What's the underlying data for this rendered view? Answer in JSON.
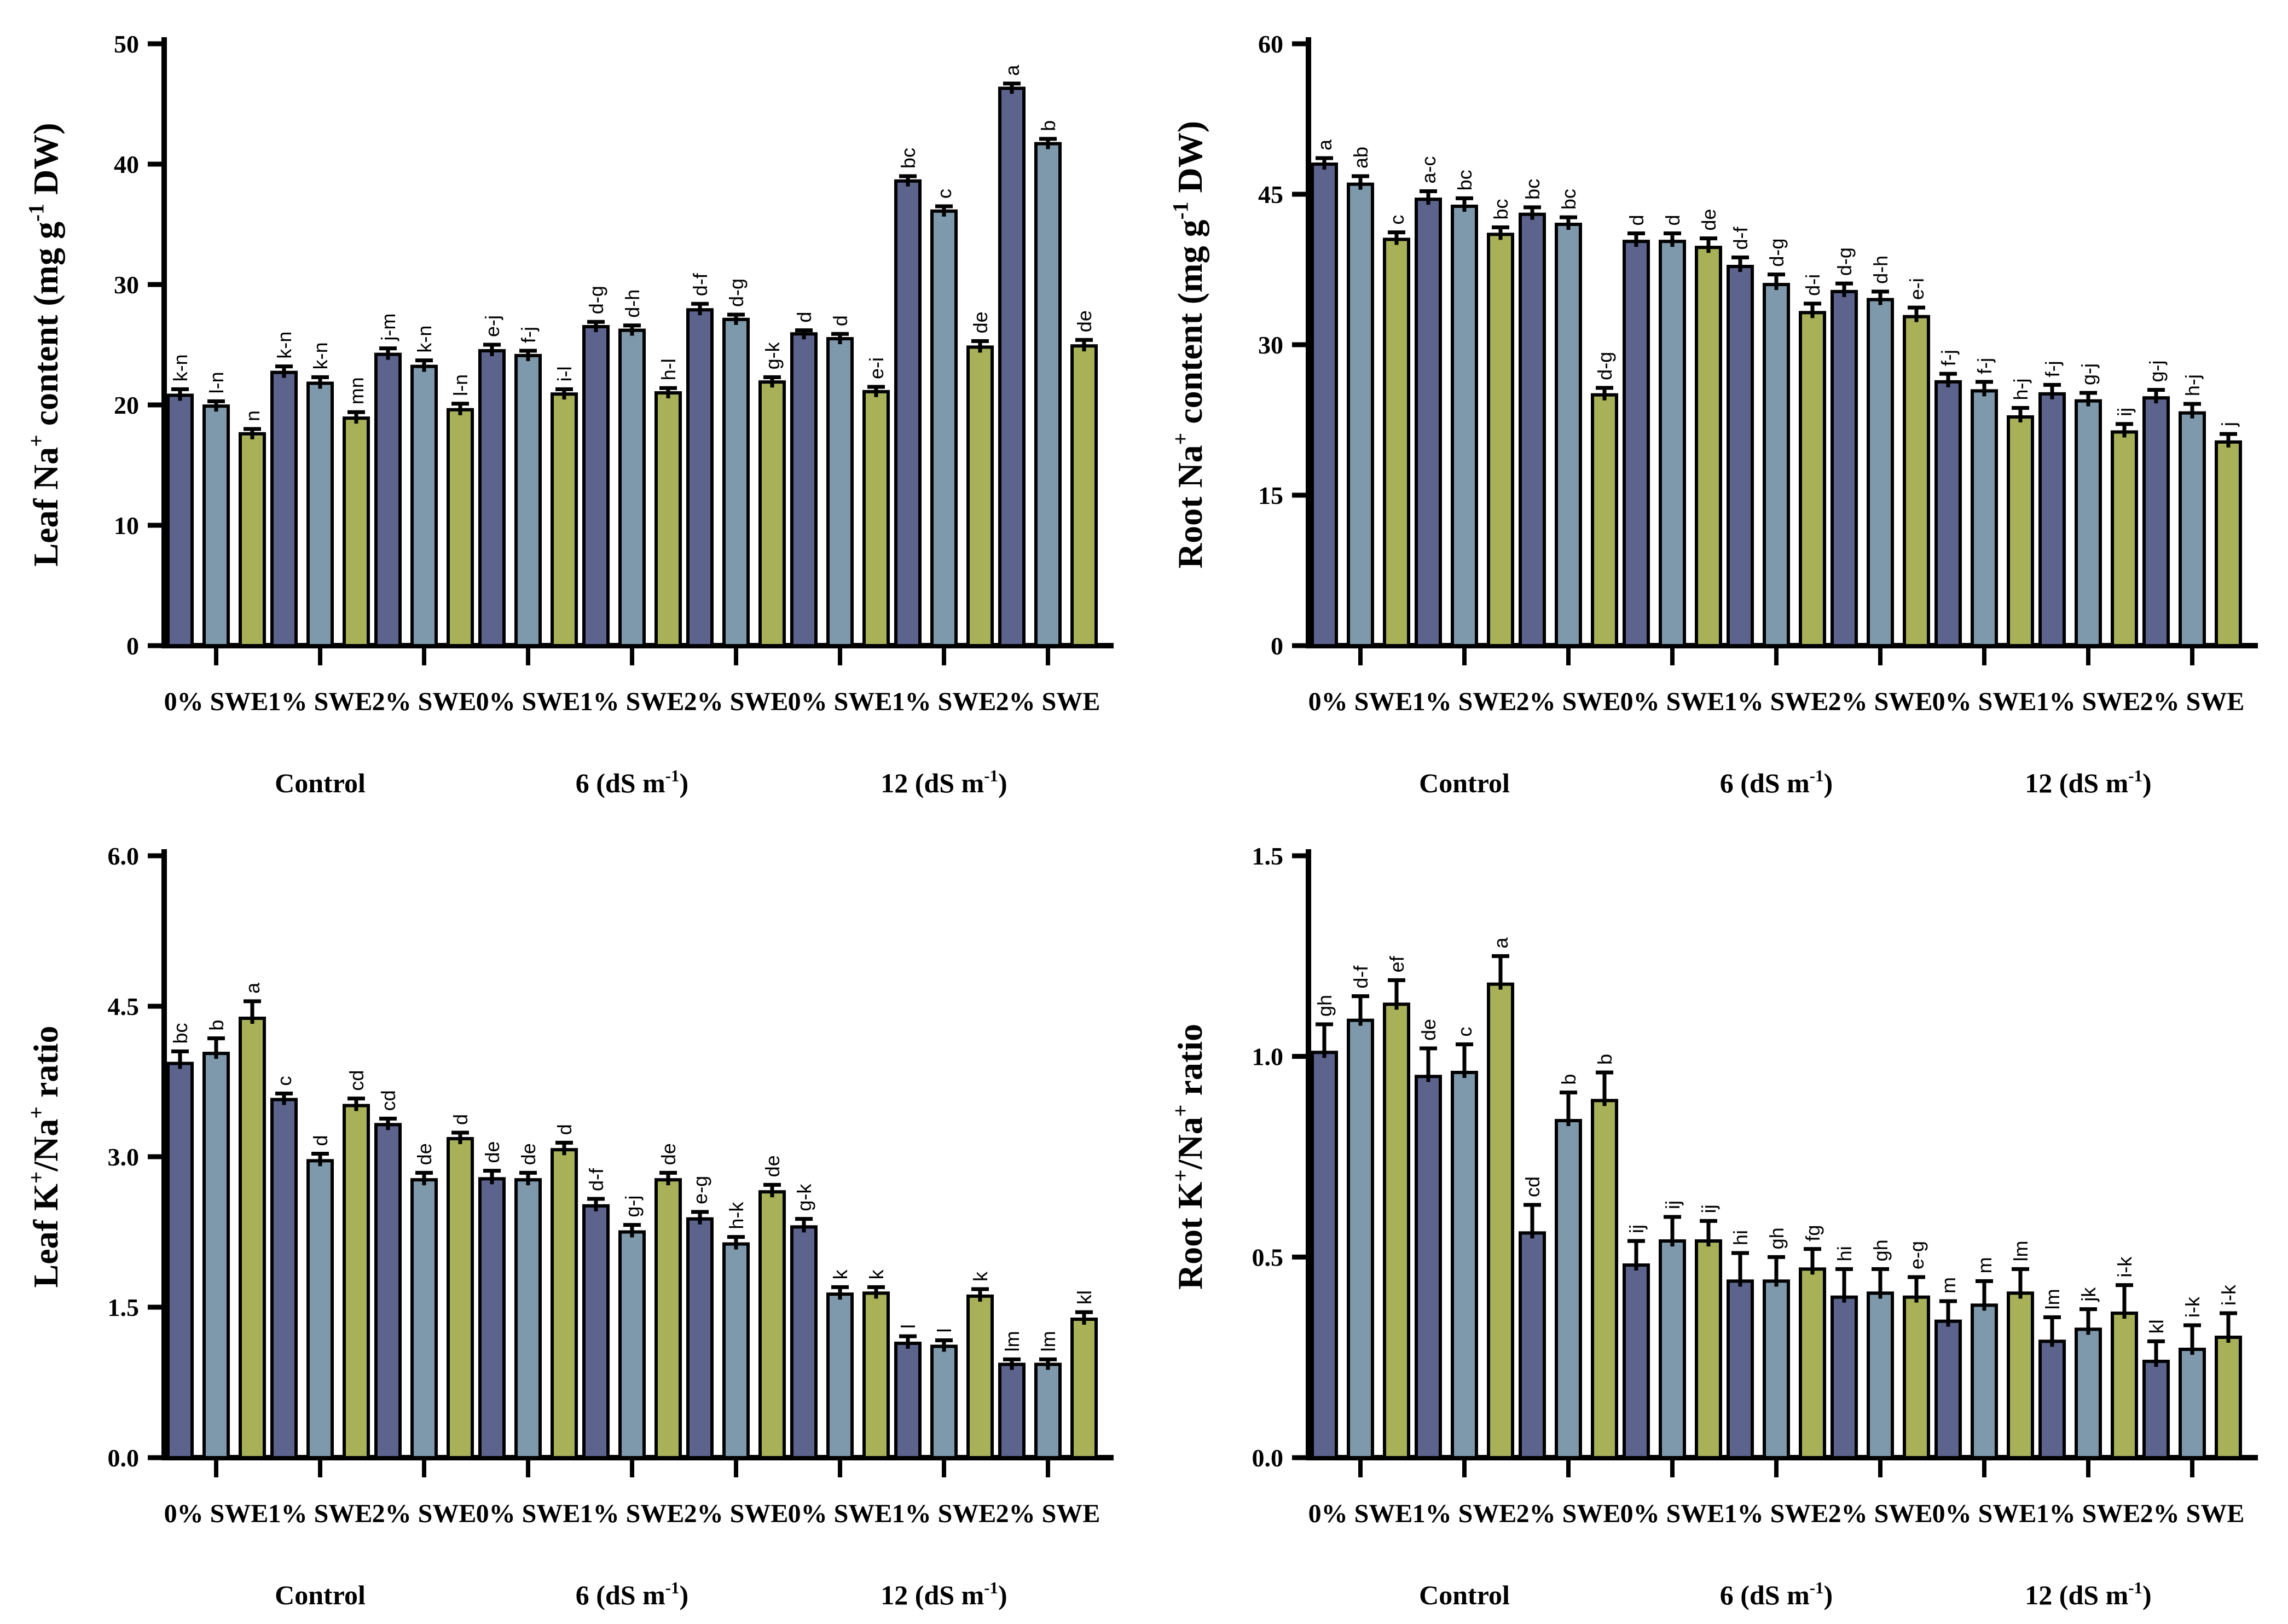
{
  "figure": {
    "background": "#ffffff"
  },
  "colors": {
    "bar_series": [
      "#5c648e",
      "#7f99ac",
      "#a9b158"
    ],
    "bar_outline": "#000000",
    "axis": "#000000",
    "text": "#000000"
  },
  "chart_data": {
    "type": "bar",
    "series_count": 3,
    "legend": "none",
    "panels": [
      {
        "id": "leaf-na-content",
        "ylabel_text": "Leaf Na+ content (mg g-1 DW)",
        "ylabel_parts": [
          {
            "t": "Leaf Na"
          },
          {
            "t": "+",
            "sup": true
          },
          {
            "t": " content (mg g"
          },
          {
            "t": "-1",
            "sup": true
          },
          {
            "t": " DW)"
          }
        ],
        "ylim": [
          0,
          50
        ],
        "yticks": [
          {
            "v": 0,
            "t": "0"
          },
          {
            "v": 10,
            "t": "10"
          },
          {
            "v": 20,
            "t": "20"
          },
          {
            "v": 30,
            "t": "30"
          },
          {
            "v": 40,
            "t": "40"
          },
          {
            "v": 50,
            "t": "50"
          }
        ],
        "salinity_groups": [
          {
            "parts": [
              {
                "t": "Control"
              }
            ],
            "group_index": 1
          },
          {
            "parts": [
              {
                "t": "6 (dS m"
              },
              {
                "t": "-1",
                "sup": true
              },
              {
                "t": ")"
              }
            ],
            "group_index": 4
          },
          {
            "parts": [
              {
                "t": "12 (dS m"
              },
              {
                "t": "-1",
                "sup": true
              },
              {
                "t": ")"
              }
            ],
            "group_index": 7
          }
        ],
        "groups": [
          {
            "label": "0% SWE",
            "values": [
              20.8,
              19.9,
              17.6
            ],
            "errors": [
              0.5,
              0.4,
              0.4
            ],
            "letters": [
              "k-n",
              "l-n",
              "n"
            ]
          },
          {
            "label": "1% SWE",
            "values": [
              22.7,
              21.8,
              18.9
            ],
            "errors": [
              0.5,
              0.5,
              0.5
            ],
            "letters": [
              "k-n",
              "k-n",
              "mn"
            ]
          },
          {
            "label": "2% SWE",
            "values": [
              24.2,
              23.2,
              19.6
            ],
            "errors": [
              0.5,
              0.5,
              0.5
            ],
            "letters": [
              "j-m",
              "k-n",
              "l-n"
            ]
          },
          {
            "label": "0% SWE",
            "values": [
              24.5,
              24.1,
              20.9
            ],
            "errors": [
              0.5,
              0.4,
              0.4
            ],
            "letters": [
              "e-j",
              "f-j",
              "i-l"
            ]
          },
          {
            "label": "1% SWE",
            "values": [
              26.5,
              26.2,
              21.0
            ],
            "errors": [
              0.4,
              0.4,
              0.4
            ],
            "letters": [
              "d-g",
              "d-h",
              "h-l"
            ]
          },
          {
            "label": "2% SWE",
            "values": [
              27.9,
              27.1,
              21.9
            ],
            "errors": [
              0.5,
              0.4,
              0.4
            ],
            "letters": [
              "d-f",
              "d-g",
              "g-k"
            ]
          },
          {
            "label": "0% SWE",
            "values": [
              25.9,
              25.5,
              21.1
            ],
            "errors": [
              0.3,
              0.4,
              0.4
            ],
            "letters": [
              "d",
              "d",
              "e-i"
            ]
          },
          {
            "label": "1% SWE",
            "values": [
              38.6,
              36.1,
              24.8
            ],
            "errors": [
              0.4,
              0.4,
              0.5
            ],
            "letters": [
              "bc",
              "c",
              "de"
            ]
          },
          {
            "label": "2% SWE",
            "values": [
              46.3,
              41.7,
              24.9
            ],
            "errors": [
              0.4,
              0.4,
              0.5
            ],
            "letters": [
              "a",
              "b",
              "de"
            ]
          }
        ]
      },
      {
        "id": "root-na-content",
        "ylabel_text": "Root Na+ content (mg g-1 DW)",
        "ylabel_parts": [
          {
            "t": "Root Na"
          },
          {
            "t": "+",
            "sup": true
          },
          {
            "t": " content (mg g"
          },
          {
            "t": "-1",
            "sup": true
          },
          {
            "t": " DW)"
          }
        ],
        "ylim": [
          0,
          60
        ],
        "yticks": [
          {
            "v": 0,
            "t": "0"
          },
          {
            "v": 15,
            "t": "15"
          },
          {
            "v": 30,
            "t": "30"
          },
          {
            "v": 45,
            "t": "45"
          },
          {
            "v": 60,
            "t": "60"
          }
        ],
        "salinity_groups": [
          {
            "parts": [
              {
                "t": "Control"
              }
            ],
            "group_index": 1
          },
          {
            "parts": [
              {
                "t": "6 (dS m"
              },
              {
                "t": "-1",
                "sup": true
              },
              {
                "t": ")"
              }
            ],
            "group_index": 4
          },
          {
            "parts": [
              {
                "t": "12 (dS m"
              },
              {
                "t": "-1",
                "sup": true
              },
              {
                "t": ")"
              }
            ],
            "group_index": 7
          }
        ],
        "groups": [
          {
            "label": "0% SWE",
            "values": [
              48.0,
              46.0,
              40.5
            ],
            "errors": [
              0.6,
              0.8,
              0.7
            ],
            "letters": [
              "a",
              "ab",
              "c"
            ]
          },
          {
            "label": "1% SWE",
            "values": [
              44.5,
              43.8,
              41.0
            ],
            "errors": [
              0.8,
              0.8,
              0.7
            ],
            "letters": [
              "a-c",
              "bc",
              "bc"
            ]
          },
          {
            "label": "2% SWE",
            "values": [
              43.0,
              42.0,
              25.0
            ],
            "errors": [
              0.7,
              0.7,
              0.7
            ],
            "letters": [
              "bc",
              "bc",
              "d-g"
            ]
          },
          {
            "label": "0% SWE",
            "values": [
              40.3,
              40.3,
              39.7
            ],
            "errors": [
              0.8,
              0.8,
              0.9
            ],
            "letters": [
              "d",
              "d",
              "de"
            ]
          },
          {
            "label": "1% SWE",
            "values": [
              37.8,
              36.0,
              33.2
            ],
            "errors": [
              0.9,
              1.0,
              0.9
            ],
            "letters": [
              "d-f",
              "d-g",
              "d-i"
            ]
          },
          {
            "label": "2% SWE",
            "values": [
              35.3,
              34.5,
              32.8
            ],
            "errors": [
              0.8,
              0.8,
              0.9
            ],
            "letters": [
              "d-g",
              "d-h",
              "e-i"
            ]
          },
          {
            "label": "0% SWE",
            "values": [
              26.3,
              25.4,
              22.8
            ],
            "errors": [
              0.8,
              0.9,
              0.9
            ],
            "letters": [
              "f-j",
              "f-j",
              "h-j"
            ]
          },
          {
            "label": "1% SWE",
            "values": [
              25.1,
              24.4,
              21.3
            ],
            "errors": [
              0.9,
              0.8,
              0.8
            ],
            "letters": [
              "f-j",
              "g-j",
              "ij"
            ]
          },
          {
            "label": "2% SWE",
            "values": [
              24.7,
              23.2,
              20.3
            ],
            "errors": [
              0.8,
              0.9,
              0.8
            ],
            "letters": [
              "g-j",
              "h-j",
              "j"
            ]
          }
        ]
      },
      {
        "id": "leaf-k-na-ratio",
        "ylabel_text": "Leaf K+/Na+ ratio",
        "ylabel_parts": [
          {
            "t": "Leaf K"
          },
          {
            "t": "+",
            "sup": true
          },
          {
            "t": "/Na"
          },
          {
            "t": "+",
            "sup": true
          },
          {
            "t": " ratio"
          }
        ],
        "ylim": [
          0,
          6
        ],
        "yticks": [
          {
            "v": 0,
            "t": "0.0"
          },
          {
            "v": 1.5,
            "t": "1.5"
          },
          {
            "v": 3,
            "t": "3.0"
          },
          {
            "v": 4.5,
            "t": "4.5"
          },
          {
            "v": 6,
            "t": "6.0"
          }
        ],
        "salinity_groups": [
          {
            "parts": [
              {
                "t": "Control"
              }
            ],
            "group_index": 1
          },
          {
            "parts": [
              {
                "t": "6 (dS m"
              },
              {
                "t": "-1",
                "sup": true
              },
              {
                "t": ")"
              }
            ],
            "group_index": 4
          },
          {
            "parts": [
              {
                "t": "12 (dS m"
              },
              {
                "t": "-1",
                "sup": true
              },
              {
                "t": ")"
              }
            ],
            "group_index": 7
          }
        ],
        "groups": [
          {
            "label": "0% SWE",
            "values": [
              3.93,
              4.03,
              4.38
            ],
            "errors": [
              0.12,
              0.15,
              0.17
            ],
            "letters": [
              "bc",
              "b",
              "a"
            ]
          },
          {
            "label": "1% SWE",
            "values": [
              3.57,
              2.96,
              3.51
            ],
            "errors": [
              0.06,
              0.07,
              0.07
            ],
            "letters": [
              "c",
              "d",
              "cd"
            ]
          },
          {
            "label": "2% SWE",
            "values": [
              3.32,
              2.77,
              3.18
            ],
            "errors": [
              0.06,
              0.07,
              0.06
            ],
            "letters": [
              "cd",
              "de",
              "d"
            ]
          },
          {
            "label": "0% SWE",
            "values": [
              2.78,
              2.77,
              3.07
            ],
            "errors": [
              0.08,
              0.07,
              0.07
            ],
            "letters": [
              "de",
              "de",
              "d"
            ]
          },
          {
            "label": "1% SWE",
            "values": [
              2.51,
              2.25,
              2.77
            ],
            "errors": [
              0.07,
              0.07,
              0.07
            ],
            "letters": [
              "d-f",
              "g-j",
              "de"
            ]
          },
          {
            "label": "2% SWE",
            "values": [
              2.38,
              2.13,
              2.65
            ],
            "errors": [
              0.07,
              0.07,
              0.07
            ],
            "letters": [
              "e-g",
              "h-k",
              "de"
            ]
          },
          {
            "label": "0% SWE",
            "values": [
              2.3,
              1.63,
              1.64
            ],
            "errors": [
              0.08,
              0.07,
              0.06
            ],
            "letters": [
              "g-k",
              "k",
              "k"
            ]
          },
          {
            "label": "1% SWE",
            "values": [
              1.14,
              1.11,
              1.61
            ],
            "errors": [
              0.07,
              0.06,
              0.07
            ],
            "letters": [
              "l",
              "l",
              "k"
            ]
          },
          {
            "label": "2% SWE",
            "values": [
              0.93,
              0.93,
              1.38
            ],
            "errors": [
              0.05,
              0.05,
              0.07
            ],
            "letters": [
              "lm",
              "lm",
              "kl"
            ]
          }
        ]
      },
      {
        "id": "root-k-na-ratio",
        "ylabel_text": "Root K+/Na+ ratio",
        "ylabel_parts": [
          {
            "t": "Root K"
          },
          {
            "t": "+",
            "sup": true
          },
          {
            "t": "/Na"
          },
          {
            "t": "+",
            "sup": true
          },
          {
            "t": " ratio"
          }
        ],
        "ylim": [
          0,
          1.5
        ],
        "yticks": [
          {
            "v": 0,
            "t": "0.0"
          },
          {
            "v": 0.5,
            "t": "0.5"
          },
          {
            "v": 1,
            "t": "1.0"
          },
          {
            "v": 1.5,
            "t": "1.5"
          }
        ],
        "salinity_groups": [
          {
            "parts": [
              {
                "t": "Control"
              }
            ],
            "group_index": 1
          },
          {
            "parts": [
              {
                "t": "6 (dS m"
              },
              {
                "t": "-1",
                "sup": true
              },
              {
                "t": ")"
              }
            ],
            "group_index": 4
          },
          {
            "parts": [
              {
                "t": "12 (dS m"
              },
              {
                "t": "-1",
                "sup": true
              },
              {
                "t": ")"
              }
            ],
            "group_index": 7
          }
        ],
        "groups": [
          {
            "label": "0% SWE",
            "values": [
              1.01,
              1.09,
              1.13
            ],
            "errors": [
              0.07,
              0.06,
              0.06
            ],
            "letters": [
              "gh",
              "d-f",
              "ef"
            ]
          },
          {
            "label": "1% SWE",
            "values": [
              0.95,
              0.96,
              1.18
            ],
            "errors": [
              0.07,
              0.07,
              0.07
            ],
            "letters": [
              "de",
              "c",
              "a"
            ]
          },
          {
            "label": "2% SWE",
            "values": [
              0.56,
              0.84,
              0.89
            ],
            "errors": [
              0.07,
              0.07,
              0.07
            ],
            "letters": [
              "cd",
              "b",
              "b"
            ]
          },
          {
            "label": "0% SWE",
            "values": [
              0.48,
              0.54,
              0.54
            ],
            "errors": [
              0.06,
              0.06,
              0.05
            ],
            "letters": [
              "ij",
              "ij",
              "ij"
            ]
          },
          {
            "label": "1% SWE",
            "values": [
              0.44,
              0.44,
              0.47
            ],
            "errors": [
              0.07,
              0.06,
              0.05
            ],
            "letters": [
              "hi",
              "gh",
              "fg"
            ]
          },
          {
            "label": "2% SWE",
            "values": [
              0.4,
              0.41,
              0.4
            ],
            "errors": [
              0.07,
              0.06,
              0.05
            ],
            "letters": [
              "hi",
              "gh",
              "e-g"
            ]
          },
          {
            "label": "0% SWE",
            "values": [
              0.34,
              0.38,
              0.41
            ],
            "errors": [
              0.05,
              0.06,
              0.06
            ],
            "letters": [
              "m",
              "m",
              "lm"
            ]
          },
          {
            "label": "1% SWE",
            "values": [
              0.29,
              0.32,
              0.36
            ],
            "errors": [
              0.06,
              0.05,
              0.07
            ],
            "letters": [
              "lm",
              "jk",
              "i-k"
            ]
          },
          {
            "label": "2% SWE",
            "values": [
              0.24,
              0.27,
              0.3
            ],
            "errors": [
              0.05,
              0.06,
              0.06
            ],
            "letters": [
              "kl",
              "i-k",
              "i-k"
            ]
          }
        ]
      }
    ]
  }
}
